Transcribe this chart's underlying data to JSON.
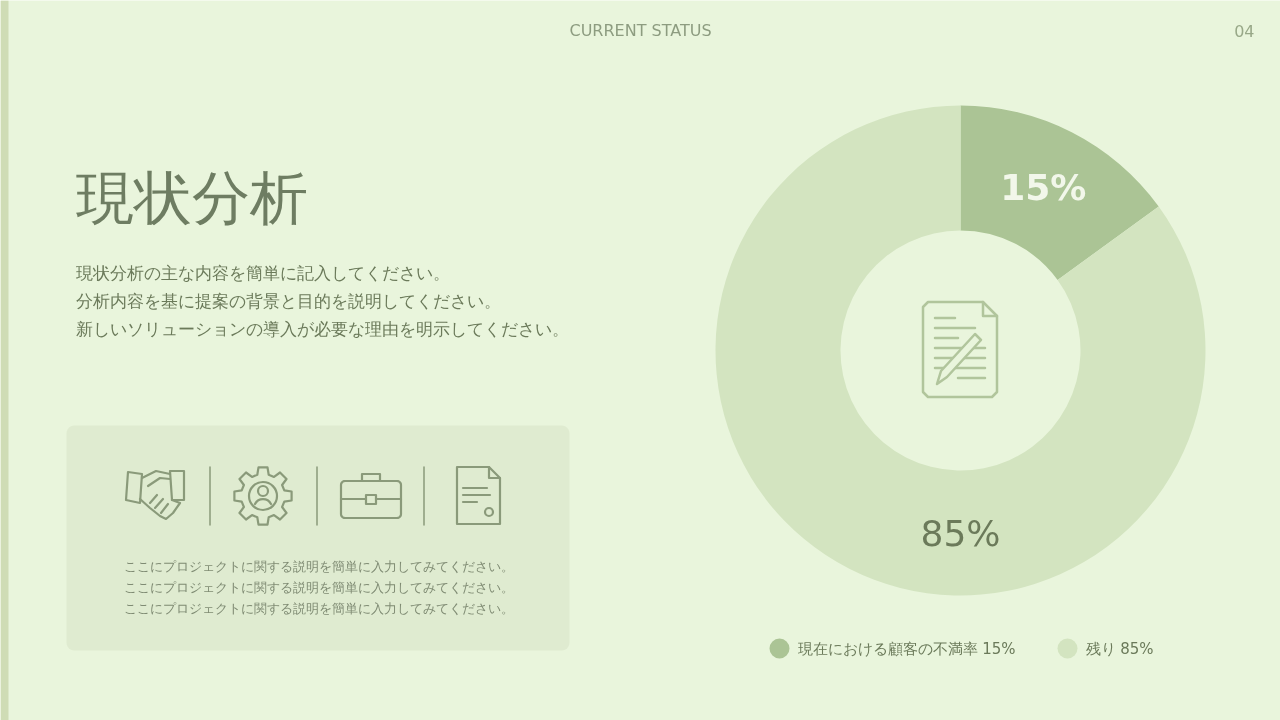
{
  "chart_data": {
    "type": "donut",
    "title": "現状分析",
    "subtitle": "現状分析の主な内容を簡単に記入してください。分析内容を基に提案の背景と目的を説明してください。新しいソリューションの導入が必要な理由を明示してください。",
    "categories": [
      "現在における顧客の不満率 15%",
      "残り 85%"
    ],
    "values": [
      15,
      85
    ],
    "colors": [
      "#abc495",
      "#d3e4c0"
    ],
    "value_labels": [
      "15%",
      "85%"
    ],
    "legend": "bottom",
    "annotations": [
      "CURRENT STATUS",
      "04",
      "ここにプロジェクトに関する説明を簡単に入力してみてください。",
      "ここにプロジェクトに関する説明を簡単に入力してみてください。",
      "ここにプロジェクトに関する説明を簡単に入力してみてください。"
    ]
  }
}
